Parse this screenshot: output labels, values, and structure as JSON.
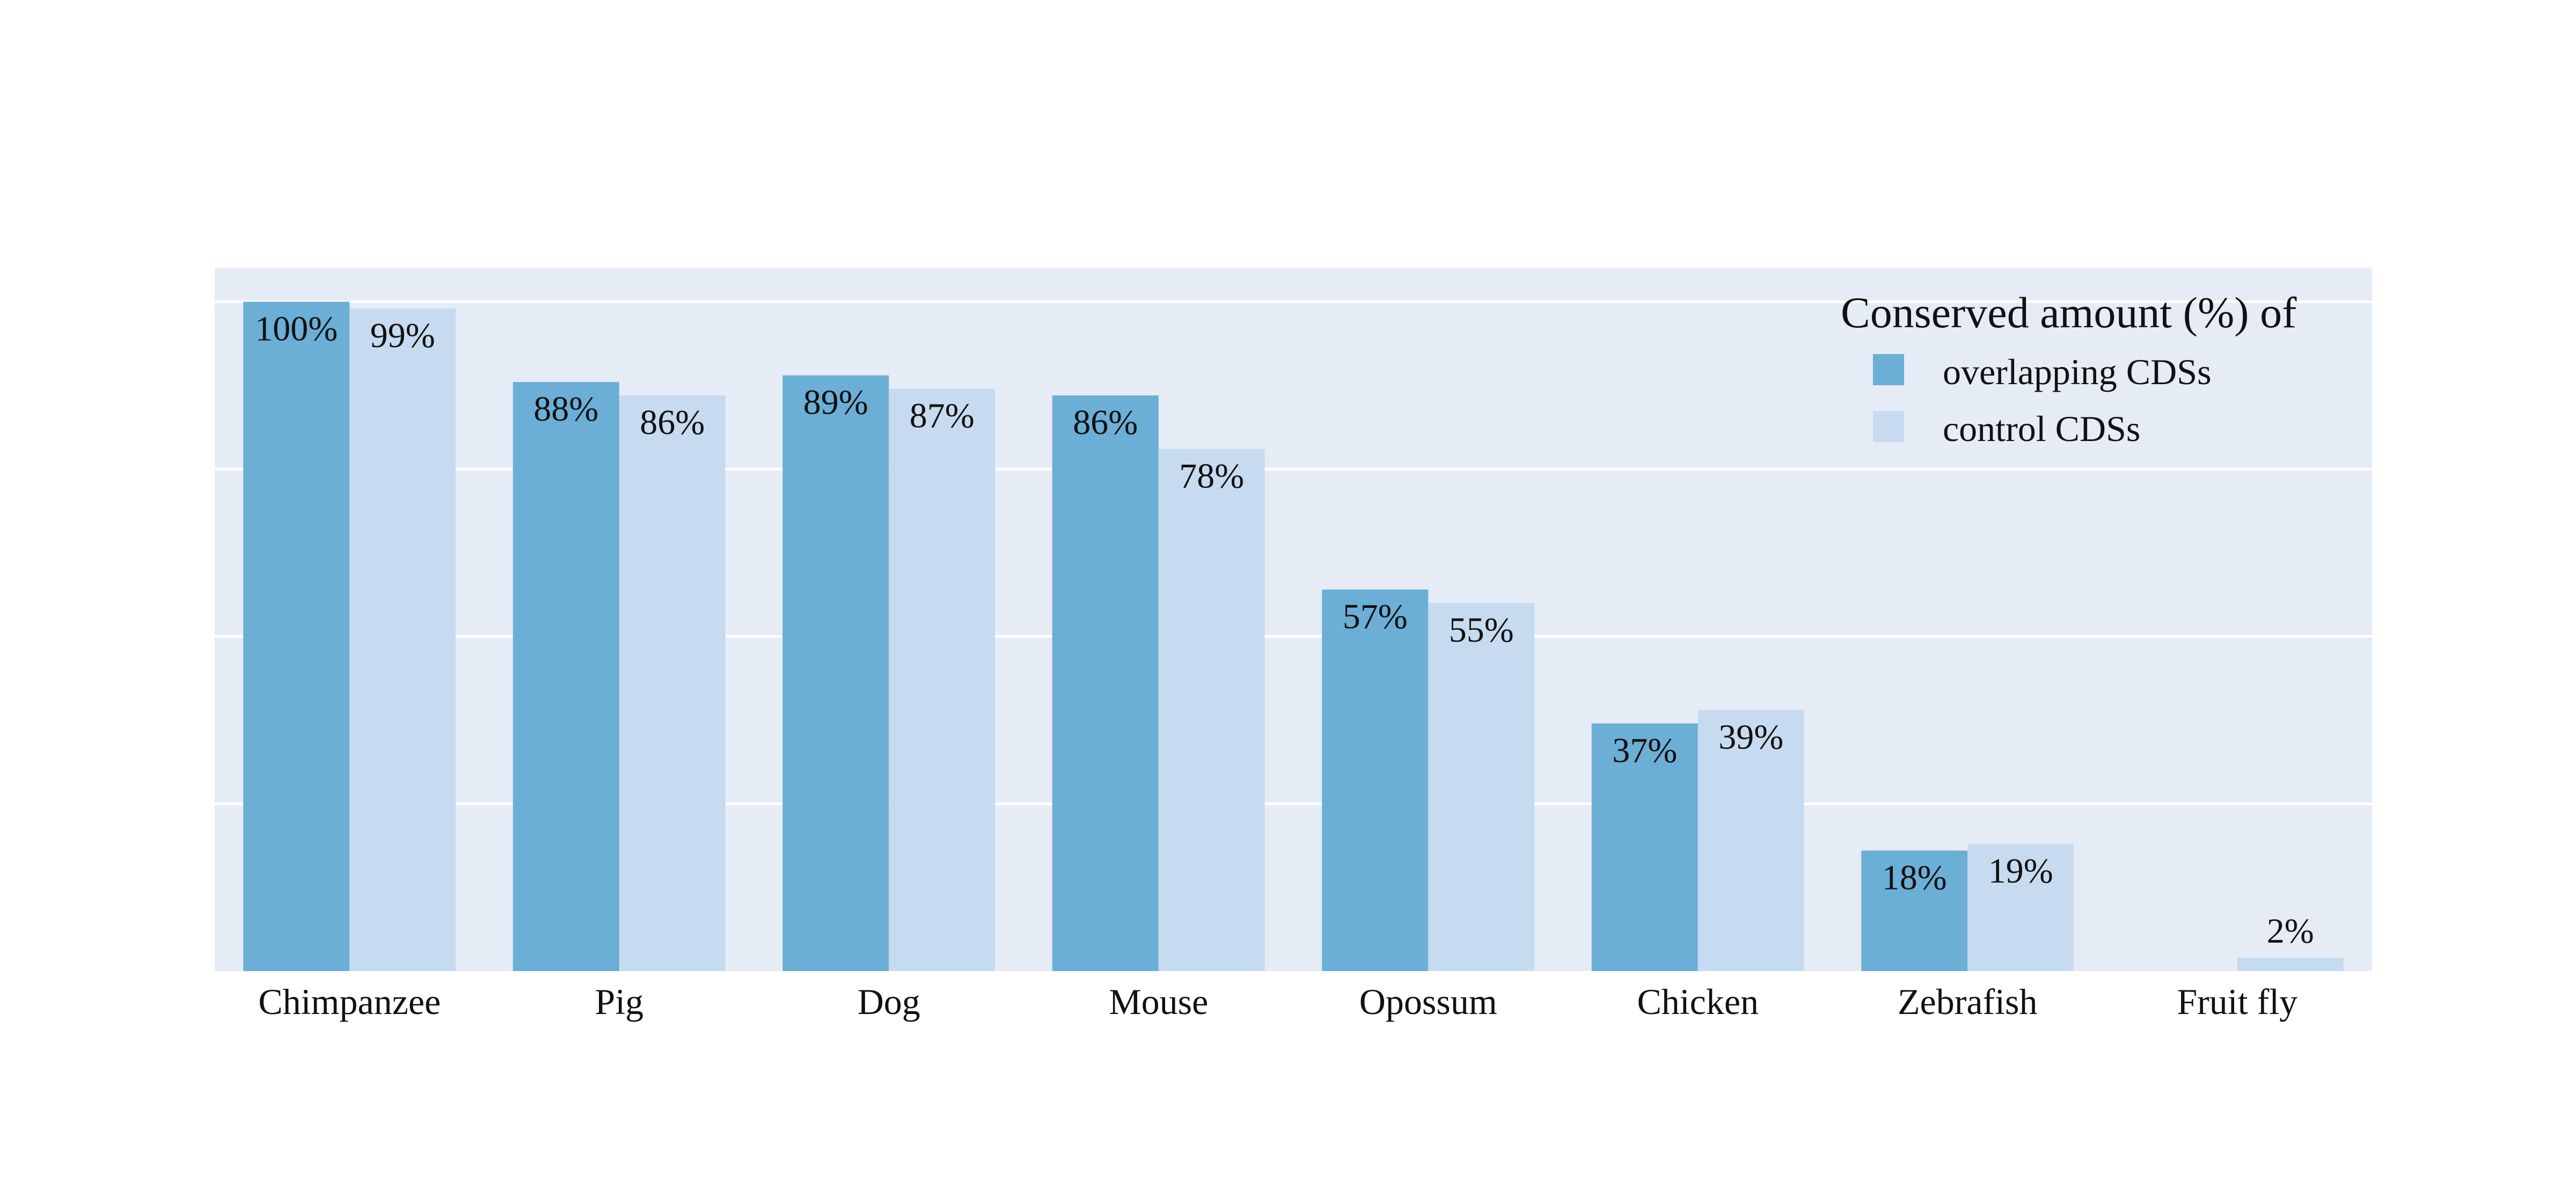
{
  "chart_data": {
    "type": "bar",
    "title": "",
    "xlabel": "",
    "ylabel": "",
    "ylim": [
      0,
      105
    ],
    "y_ticks_shown": false,
    "grid": true,
    "categories": [
      "Chimpanzee",
      "Pig",
      "Dog",
      "Mouse",
      "Opossum",
      "Chicken",
      "Zebrafish",
      "Fruit fly"
    ],
    "series": [
      {
        "name": "overlapping CDSs",
        "values": [
          100,
          88,
          89,
          86,
          57,
          37,
          18,
          0
        ],
        "labels": [
          "100%",
          "88%",
          "89%",
          "86%",
          "57%",
          "37%",
          "18%",
          ""
        ]
      },
      {
        "name": "control CDSs",
        "values": [
          99,
          86,
          87,
          78,
          55,
          39,
          19,
          2
        ],
        "labels": [
          "99%",
          "86%",
          "87%",
          "78%",
          "55%",
          "39%",
          "19%",
          "2%"
        ]
      }
    ],
    "legend": {
      "title": "Conserved amount (%) of",
      "placement": "top-right"
    },
    "colors": {
      "plot_background": "#e5ecf6",
      "gridline": "#ffffff",
      "series": [
        "#6baed6",
        "#c6dbef"
      ]
    }
  }
}
